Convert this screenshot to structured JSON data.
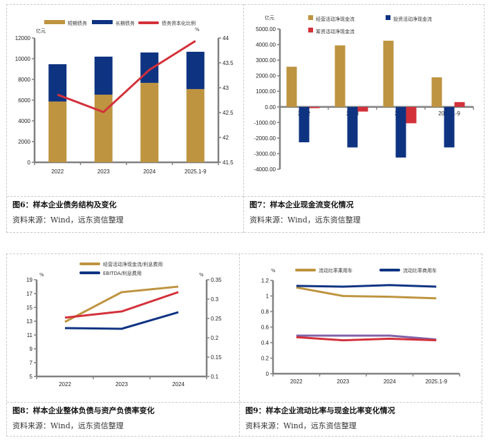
{
  "figures": [
    {
      "caption": "图6：样本企业债务结构及变化",
      "source": "资料来源：Wind，远东资信整理"
    },
    {
      "caption": "图7：样本企业现金流变化情况",
      "source": "资料来源：Wind，远东资信整理"
    },
    {
      "caption": "图8：样本企业整体负债与资产负债率变化",
      "source": "资料来源：Wind，远东资信整理"
    },
    {
      "caption": "图9：样本企业流动比率与现金比率变化情况",
      "source": "资料来源：Wind，远东资信整理"
    }
  ],
  "colors": {
    "gold": "#BE9440",
    "navy": "#0E3381",
    "red": "#D3313A",
    "purple": "#8062A8",
    "axis": "#808080"
  },
  "chart_data": [
    {
      "type": "bar",
      "stacked": true,
      "categories": [
        "2022",
        "2023",
        "2024",
        "2025.1-9"
      ],
      "series": [
        {
          "name": "短期债务",
          "axis": "left",
          "kind": "bar",
          "color": "#BE9440",
          "values": [
            5870,
            6530,
            7670,
            7070
          ]
        },
        {
          "name": "长期债务",
          "axis": "left",
          "kind": "bar",
          "color": "#0E3381",
          "values": [
            3600,
            3670,
            2930,
            3600
          ]
        },
        {
          "name": "债务资本化比例",
          "axis": "right",
          "kind": "line",
          "color": "#D3313A",
          "values": [
            42.86,
            42.51,
            43.36,
            43.94
          ]
        }
      ],
      "ylabel": "亿元",
      "y2label": "%",
      "ylim": [
        0,
        12000
      ],
      "yticks": [
        "0",
        "2000",
        "4000",
        "6000",
        "8000",
        "10000",
        "12000"
      ],
      "y2lim": [
        41.5,
        44
      ],
      "y2ticks": [
        "41.5",
        "42",
        "42.5",
        "43",
        "43.5",
        "44"
      ],
      "legend": "top"
    },
    {
      "type": "bar",
      "categories": [
        "2022",
        "2023",
        "2024",
        "2025.1-9"
      ],
      "series": [
        {
          "name": "经营活动净现金流",
          "color": "#BE9440",
          "values": [
            2580,
            3950,
            4250,
            1900
          ]
        },
        {
          "name": "投资活动净现金流",
          "color": "#0E3381",
          "values": [
            -2270,
            -2600,
            -3250,
            -2600
          ]
        },
        {
          "name": "筹资活动净现金流",
          "color": "#D3313A",
          "values": [
            -80,
            -300,
            -1050,
            310
          ]
        }
      ],
      "ylabel": "亿元",
      "ylim": [
        -4000,
        5000
      ],
      "yticks": [
        "-4000.00",
        "-3000.00",
        "-2000.00",
        "-1000.00",
        "0.00",
        "1000.00",
        "2000.00",
        "3000.00",
        "4000.00",
        "5000.00"
      ],
      "legend": "top"
    },
    {
      "type": "line",
      "categories": [
        "2022",
        "2023",
        "2024"
      ],
      "series": [
        {
          "name": "经营活动净现金流/利息费用",
          "axis": "left",
          "color": "#BE9440",
          "values": [
            12.9,
            17.2,
            18.0
          ]
        },
        {
          "name": "EBITDA/利息费用",
          "axis": "left",
          "color": "#0E3381",
          "values": [
            12.0,
            11.9,
            14.3
          ]
        },
        {
          "name": "",
          "axis": "right",
          "color": "#D3313A",
          "values": [
            0.252,
            0.268,
            0.318
          ]
        }
      ],
      "ylabel": "%",
      "y2label": "%",
      "ylim": [
        5,
        19
      ],
      "yticks": [
        "5",
        "7",
        "9",
        "11",
        "13",
        "15",
        "17",
        "19"
      ],
      "y2lim": [
        0.1,
        0.35
      ],
      "y2ticks": [
        "0.1",
        "0.15",
        "0.2",
        "0.25",
        "0.3",
        "0.35"
      ],
      "legend": "top"
    },
    {
      "type": "line",
      "categories": [
        "2022",
        "2023",
        "2024",
        "2025.1-9"
      ],
      "series": [
        {
          "name": "流动比率乘用车",
          "color": "#BE9440",
          "values": [
            1.11,
            1.0,
            0.99,
            0.97
          ]
        },
        {
          "name": "流动比率商用车",
          "color": "#0E3381",
          "values": [
            1.13,
            1.12,
            1.14,
            1.12
          ]
        },
        {
          "name": "",
          "color": "#8062A8",
          "values": [
            0.49,
            0.49,
            0.49,
            0.44
          ]
        },
        {
          "name": "",
          "color": "#D3313A",
          "values": [
            0.47,
            0.43,
            0.45,
            0.43
          ]
        }
      ],
      "ylabel": "%",
      "ylim": [
        0,
        1.2
      ],
      "yticks": [
        "0",
        "0.2",
        "0.4",
        "0.6",
        "0.8",
        "1",
        "1.2"
      ],
      "legend": "top"
    }
  ]
}
